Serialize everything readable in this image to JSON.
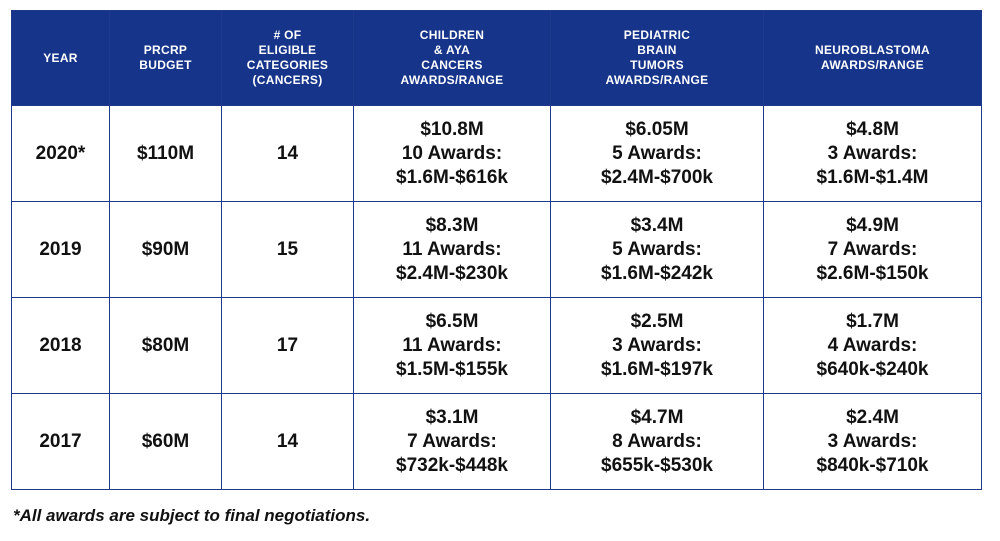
{
  "table": {
    "header": [
      [
        "YEAR"
      ],
      [
        "PRCRP",
        "BUDGET"
      ],
      [
        "# OF",
        "ELIGIBLE",
        "CATEGORIES",
        "(CANCERS)"
      ],
      [
        "CHILDREN",
        "& AYA",
        "CANCERS",
        "AWARDS/RANGE"
      ],
      [
        "PEDIATRIC",
        "BRAIN",
        "TUMORS",
        "AWARDS/RANGE"
      ],
      [
        "NEUROBLASTOMA",
        "AWARDS/RANGE"
      ]
    ],
    "rows": [
      {
        "year": "2020*",
        "budget": "$110M",
        "categories": "14",
        "children_aya": [
          "$10.8M",
          "10 Awards:",
          "$1.6M-$616k"
        ],
        "brain_tumors": [
          "$6.05M",
          "5 Awards:",
          "$2.4M-$700k"
        ],
        "neuroblastoma": [
          "$4.8M",
          "3 Awards:",
          "$1.6M-$1.4M"
        ]
      },
      {
        "year": "2019",
        "budget": "$90M",
        "categories": "15",
        "children_aya": [
          "$8.3M",
          "11 Awards:",
          "$2.4M-$230k"
        ],
        "brain_tumors": [
          "$3.4M",
          "5 Awards:",
          "$1.6M-$242k"
        ],
        "neuroblastoma": [
          "$4.9M",
          "7 Awards:",
          "$2.6M-$150k"
        ]
      },
      {
        "year": "2018",
        "budget": "$80M",
        "categories": "17",
        "children_aya": [
          "$6.5M",
          "11 Awards:",
          "$1.5M-$155k"
        ],
        "brain_tumors": [
          "$2.5M",
          "3 Awards:",
          "$1.6M-$197k"
        ],
        "neuroblastoma": [
          "$1.7M",
          "4 Awards:",
          "$640k-$240k"
        ]
      },
      {
        "year": "2017",
        "budget": "$60M",
        "categories": "14",
        "children_aya": [
          "$3.1M",
          "7 Awards:",
          "$732k-$448k"
        ],
        "brain_tumors": [
          "$4.7M",
          "8 Awards:",
          "$655k-$530k"
        ],
        "neuroblastoma": [
          "$2.4M",
          "3 Awards:",
          "$840k-$710k"
        ]
      }
    ]
  },
  "footnote": "*All awards are subject to final negotiations.",
  "colors": {
    "header_bg": "#16348a",
    "header_text": "#ffffff",
    "border": "#1f3a8a",
    "body_text": "#111111"
  }
}
